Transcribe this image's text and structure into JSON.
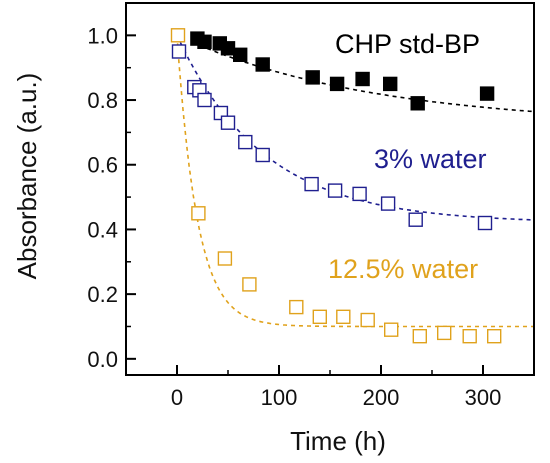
{
  "chart_data": {
    "type": "scatter",
    "title": "",
    "xlabel": "Time (h)",
    "ylabel": "Absorbance (a.u.)",
    "xlim": [
      -50,
      350
    ],
    "ylim": [
      -0.05,
      1.1
    ],
    "xticks": [
      0,
      100,
      200,
      300
    ],
    "yticks": [
      0.0,
      0.2,
      0.4,
      0.6,
      0.8,
      1.0
    ],
    "xtick_labels": [
      "0",
      "100",
      "200",
      "300"
    ],
    "ytick_labels": [
      "0.0",
      "0.2",
      "0.4",
      "0.6",
      "0.8",
      "1.0"
    ],
    "grid": false,
    "series": [
      {
        "name": "CHP std-BP",
        "color": "#000000",
        "marker": "filled-square",
        "x": [
          20,
          27,
          42,
          50,
          62,
          84,
          133,
          157,
          182,
          209,
          236,
          304
        ],
        "y": [
          0.99,
          0.98,
          0.975,
          0.96,
          0.94,
          0.91,
          0.87,
          0.85,
          0.865,
          0.85,
          0.79,
          0.82
        ],
        "fit": {
          "type": "exp",
          "a": 0.72,
          "b": 0.28,
          "tau": 190
        }
      },
      {
        "name": "3% water",
        "color": "#1f1f8f",
        "marker": "open-square",
        "x": [
          2,
          17,
          22,
          27,
          43,
          50,
          67,
          84,
          132,
          155,
          179,
          207,
          234,
          302
        ],
        "y": [
          0.95,
          0.84,
          0.83,
          0.8,
          0.76,
          0.73,
          0.67,
          0.63,
          0.54,
          0.52,
          0.51,
          0.48,
          0.43,
          0.42
        ],
        "fit": {
          "type": "exp",
          "a": 0.42,
          "b": 0.58,
          "tau": 85
        }
      },
      {
        "name": "12.5% water",
        "color": "#e0a21c",
        "marker": "open-square",
        "x": [
          1,
          21,
          47,
          71,
          117,
          140,
          163,
          187,
          210,
          238,
          262,
          287,
          311
        ],
        "y": [
          1.0,
          0.45,
          0.31,
          0.23,
          0.16,
          0.13,
          0.13,
          0.12,
          0.09,
          0.07,
          0.08,
          0.07,
          0.07
        ],
        "fit": {
          "type": "exp",
          "a": 0.1,
          "b": 0.9,
          "tau": 20
        }
      }
    ]
  }
}
